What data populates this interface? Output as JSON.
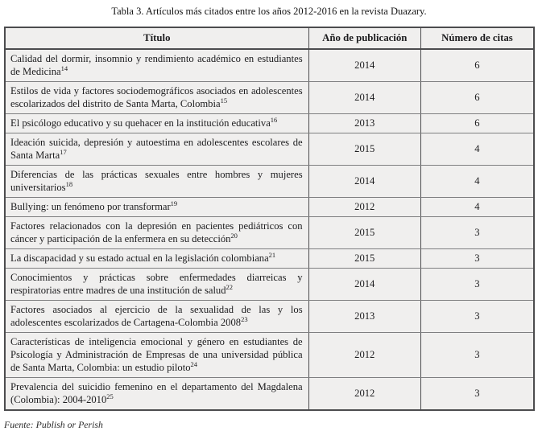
{
  "caption": "Tabla 3. Artículos más citados entre los años 2012-2016 en la revista Duazary.",
  "source": "Fuente: Publish or Perish",
  "colors": {
    "cell_background": "#f0efee",
    "border_dark": "#4c4c4e",
    "border_light": "#7f7f81",
    "text": "#1c1c1e"
  },
  "table": {
    "headers": [
      "Título",
      "Año de publicación",
      "Número de citas"
    ],
    "rows": [
      {
        "title": "Calidad del dormir, insomnio y rendimiento académico en estudiantes de Medicina",
        "ref": "14",
        "year": "2014",
        "citations": "6"
      },
      {
        "title": "Estilos de vida y factores sociodemográficos asociados en adolescentes escolarizados del distrito de Santa Marta, Colombia",
        "ref": "15",
        "year": "2014",
        "citations": "6"
      },
      {
        "title": "El psicólogo educativo y su quehacer en la institución educativa",
        "ref": "16",
        "year": "2013",
        "citations": "6"
      },
      {
        "title": "Ideación suicida, depresión y autoestima en adolescentes escolares de Santa Marta",
        "ref": "17",
        "year": "2015",
        "citations": "4"
      },
      {
        "title": "Diferencias de las prácticas sexuales entre hombres y mujeres universitarios",
        "ref": "18",
        "year": "2014",
        "citations": "4"
      },
      {
        "title": "Bullying: un fenómeno por transformar",
        "ref": "19",
        "year": "2012",
        "citations": "4"
      },
      {
        "title": "Factores relacionados con la depresión en pacientes pediátricos con cáncer y participación de la enfermera en su detección",
        "ref": "20",
        "year": "2015",
        "citations": "3"
      },
      {
        "title": "La discapacidad y su estado actual en la legislación colombiana",
        "ref": "21",
        "year": "2015",
        "citations": "3"
      },
      {
        "title": "Conocimientos y prácticas sobre enfermedades diarreicas y respiratorias entre madres de una institución de salud",
        "ref": "22",
        "year": "2014",
        "citations": "3"
      },
      {
        "title": "Factores asociados al ejercicio de la sexualidad de las y los adolescentes escolarizados de Cartagena-Colombia 2008",
        "ref": "23",
        "year": "2013",
        "citations": "3"
      },
      {
        "title": "Características de inteligencia emocional y género en estudiantes de Psicología y Administración de Empresas de una universidad pública de Santa Marta, Colombia: un estudio piloto",
        "ref": "24",
        "year": "2012",
        "citations": "3"
      },
      {
        "title": "Prevalencia del suicidio femenino en el departamento del Magdalena (Colombia): 2004-2010",
        "ref": "25",
        "year": "2012",
        "citations": "3"
      }
    ]
  }
}
